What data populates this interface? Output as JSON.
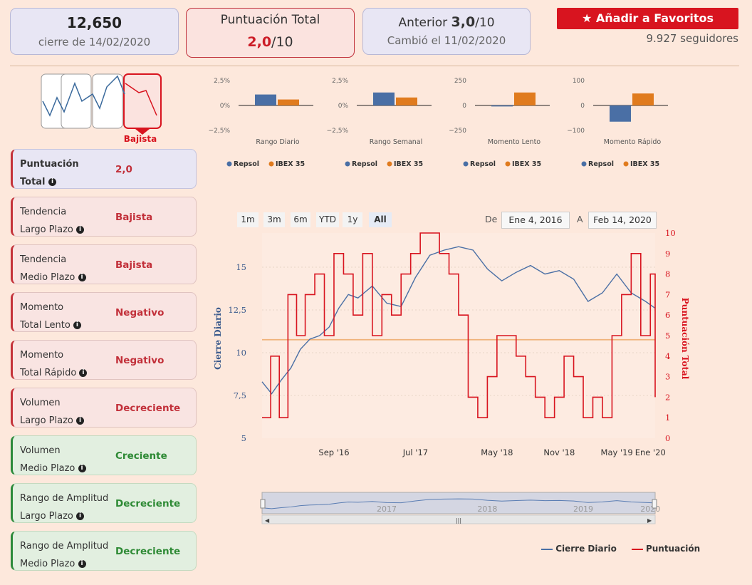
{
  "header": {
    "close_value": "12,650",
    "close_date": "cierre de 14/02/2020",
    "score_title": "Puntuación Total",
    "score_value": "2,0",
    "score_suffix": "/10",
    "prev_label": "Anterior ",
    "prev_value": "3,0",
    "prev_suffix": "/10",
    "prev_date": "Cambió el 11/02/2020",
    "fav_button": "Añadir a Favoritos",
    "followers": "9.927 seguidores"
  },
  "trend_badge": "Bajista",
  "indicators": [
    {
      "label1": "Puntuación",
      "label2": "Total",
      "value": "2,0",
      "style": "blue",
      "bold": true
    },
    {
      "label1": "Tendencia",
      "label2": "Largo Plazo",
      "value": "Bajista",
      "style": "red"
    },
    {
      "label1": "Tendencia",
      "label2": "Medio Plazo",
      "value": "Bajista",
      "style": "red"
    },
    {
      "label1": "Momento",
      "label2": "Total Lento",
      "value": "Negativo",
      "style": "red"
    },
    {
      "label1": "Momento",
      "label2": "Total Rápido",
      "value": "Negativo",
      "style": "red"
    },
    {
      "label1": "Volumen",
      "label2": "Largo Plazo",
      "value": "Decreciente",
      "style": "red"
    },
    {
      "label1": "Volumen",
      "label2": "Medio Plazo",
      "value": "Creciente",
      "style": "green"
    },
    {
      "label1": "Rango de Amplitud",
      "label2": "Largo Plazo",
      "value": "Decreciente",
      "style": "green"
    },
    {
      "label1": "Rango de Amplitud",
      "label2": "Medio Plazo",
      "value": "Decreciente",
      "style": "green"
    }
  ],
  "colors": {
    "repsol": "#4a6fa5",
    "ibex": "#e07b1e",
    "score": "#d8141f",
    "threshold": "#f0b27a"
  },
  "chart_data": [
    {
      "type": "bar",
      "title": "Rango Diario",
      "categories": [
        "Repsol",
        "IBEX 35"
      ],
      "values": [
        1.1,
        0.6
      ],
      "ylim": [
        -2.5,
        2.5
      ],
      "ticks": [
        "2,5%",
        "0%",
        "−2,5%"
      ]
    },
    {
      "type": "bar",
      "title": "Rango Semanal",
      "categories": [
        "Repsol",
        "IBEX 35"
      ],
      "values": [
        1.3,
        0.8
      ],
      "ylim": [
        -2.5,
        2.5
      ],
      "ticks": [
        "2,5%",
        "0%",
        "−2,5%"
      ]
    },
    {
      "type": "bar",
      "title": "Momento Lento",
      "categories": [
        "Repsol",
        "IBEX 35"
      ],
      "values": [
        -10,
        130
      ],
      "ylim": [
        -250,
        250
      ],
      "ticks": [
        "250",
        "0",
        "−250"
      ]
    },
    {
      "type": "bar",
      "title": "Momento Rápido",
      "categories": [
        "Repsol",
        "IBEX 35"
      ],
      "values": [
        -65,
        48
      ],
      "ylim": [
        -100,
        100
      ],
      "ticks": [
        "100",
        "0",
        "−100"
      ]
    },
    {
      "type": "line",
      "range_buttons": [
        "1m",
        "3m",
        "6m",
        "YTD",
        "1y",
        "All"
      ],
      "selected_range": "All",
      "from_label": "De",
      "from_date": "Ene 4, 2016",
      "to_label": "A",
      "to_date": "Feb 14, 2020",
      "ylabel_left": "Cierre Diario",
      "ylabel_right": "Puntuación Total",
      "ylim_left": [
        5,
        17
      ],
      "ylim_right": [
        0,
        10
      ],
      "left_ticks": [
        "15",
        "12,5",
        "10",
        "7,5",
        "5"
      ],
      "right_ticks": [
        "10",
        "9",
        "8",
        "7",
        "6",
        "5",
        "4",
        "3",
        "2",
        "1",
        "0"
      ],
      "x_ticks": [
        "Sep '16",
        "Jul '17",
        "May '18",
        "Nov '18",
        "May '19",
        "Ene '20"
      ],
      "navigator_years": [
        "2017",
        "2018",
        "2019",
        "2020"
      ],
      "threshold": 4.8,
      "legend": [
        "Cierre Diario",
        "Puntuación"
      ],
      "series": [
        {
          "name": "Cierre Diario",
          "x": [
            0,
            0.1,
            0.2,
            0.3,
            0.4,
            0.5,
            0.6,
            0.7,
            0.8,
            0.9,
            1.0,
            1.15,
            1.3,
            1.45,
            1.6,
            1.75,
            1.9,
            2.05,
            2.2,
            2.35,
            2.5,
            2.65,
            2.8,
            2.95,
            3.1,
            3.25,
            3.4,
            3.55,
            3.7,
            3.85,
            4.0,
            4.1
          ],
          "values": [
            8.3,
            7.6,
            8.4,
            9.1,
            10.2,
            10.8,
            11.0,
            11.5,
            12.6,
            13.4,
            13.2,
            13.9,
            12.9,
            12.7,
            14.4,
            15.7,
            16.0,
            16.2,
            16.0,
            14.9,
            14.2,
            14.7,
            15.1,
            14.6,
            14.8,
            14.3,
            13.0,
            13.5,
            14.6,
            13.5,
            13.0,
            12.6
          ]
        },
        {
          "name": "Puntuación",
          "x": [
            0,
            0.09,
            0.18,
            0.27,
            0.36,
            0.45,
            0.55,
            0.65,
            0.75,
            0.85,
            0.95,
            1.05,
            1.15,
            1.25,
            1.35,
            1.45,
            1.55,
            1.65,
            1.75,
            1.85,
            1.95,
            2.05,
            2.15,
            2.25,
            2.35,
            2.45,
            2.55,
            2.65,
            2.75,
            2.85,
            2.95,
            3.05,
            3.15,
            3.25,
            3.35,
            3.45,
            3.55,
            3.65,
            3.75,
            3.85,
            3.95,
            4.05,
            4.1
          ],
          "values": [
            1,
            4,
            1,
            7,
            5,
            7,
            8,
            5,
            9,
            8,
            6,
            9,
            5,
            7,
            6,
            8,
            9,
            10,
            10,
            9,
            8,
            6,
            2,
            1,
            3,
            5,
            5,
            4,
            3,
            2,
            1,
            2,
            4,
            3,
            1,
            2,
            1,
            5,
            7,
            9,
            5,
            8,
            2
          ]
        }
      ]
    }
  ]
}
